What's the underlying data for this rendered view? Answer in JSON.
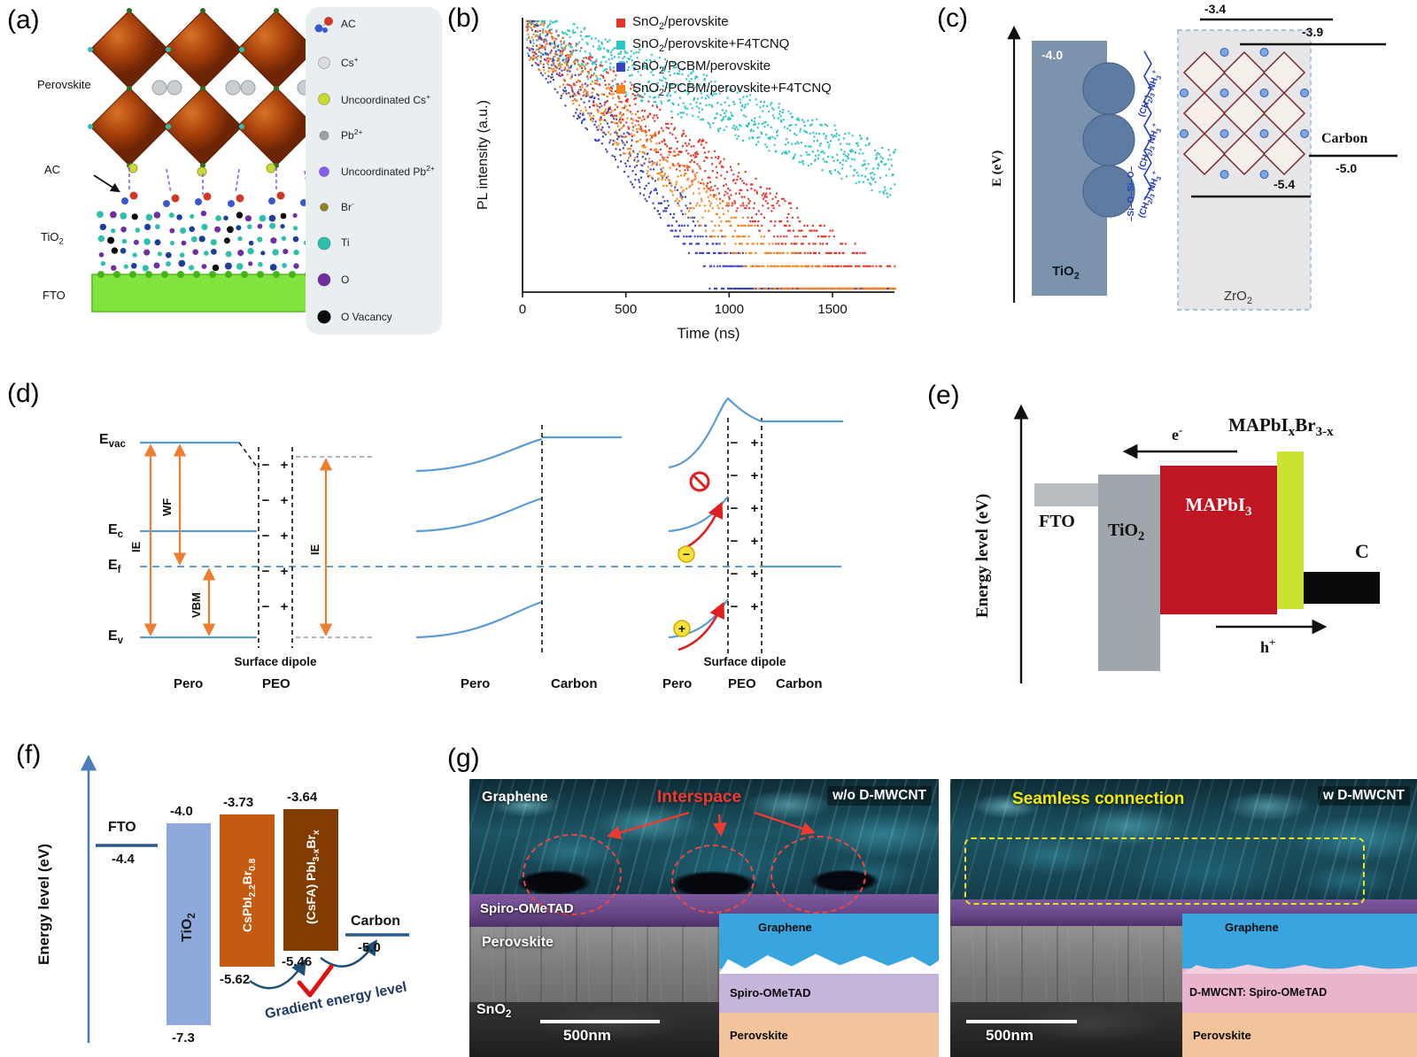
{
  "panel_a": {
    "label": "(a)",
    "perovskite": "Perovskite",
    "ac": "AC",
    "tio2": "TiO<sub>2</sub>",
    "fto": "FTO",
    "legend": [
      {
        "name": "AC",
        "color": "#cf3a28"
      },
      {
        "name": "Cs<sup>+</sup>",
        "color": "#dcdcdc"
      },
      {
        "name": "Uncoordinated Cs<sup>+</sup>",
        "color": "#ccd838"
      },
      {
        "name": "Pb<sup>2+</sup>",
        "color": "#9ba1a6"
      },
      {
        "name": "Uncoordinated Pb<sup>2+</sup>",
        "color": "#8a5cf5"
      },
      {
        "name": "Br<sup>-</sup>",
        "color": "#94811c"
      },
      {
        "name": "Ti",
        "color": "#2fbfae"
      },
      {
        "name": "O",
        "color": "#6f2fa0"
      },
      {
        "name": "O Vacancy",
        "color": "#0b0b0b"
      }
    ]
  },
  "panel_b": {
    "label": "(b)",
    "chart_data": {
      "type": "scatter",
      "xlabel": "Time (ns)",
      "ylabel": "PL intensity  (a.u.)",
      "xlim": [
        0,
        1800
      ],
      "xticks": [
        "0",
        "500",
        "1000",
        "1500"
      ],
      "yscale": "log (arbitrary units, photon-count banding at low intensity)",
      "legend_position": "top-left-inside",
      "series": [
        {
          "name": "SnO<sub>2</sub>/perovskite",
          "color": "#e63329",
          "tau_ns": 210,
          "bg": 0.18
        },
        {
          "name": "SnO<sub>2</sub>/perovskite+F4TCNQ",
          "color": "#2cc5c6",
          "tau_ns": 400,
          "bg": 0.55
        },
        {
          "name": "SnO<sub>2</sub>/PCBM/perovskite",
          "color": "#3743c0",
          "tau_ns": 130,
          "bg": 0.3
        },
        {
          "name": "SnO<sub>2</sub>/PCBM/perovskite+F4TCNQ",
          "color": "#f5851e",
          "tau_ns": 160,
          "bg": 0.38
        }
      ]
    }
  },
  "panel_c": {
    "label": "(c)",
    "axis_label": "E (eV)",
    "tio2_level": "-4.0",
    "tio2_label": "TiO<sub>2</sub>",
    "level_34": "-3.4",
    "level_39": "-3.9",
    "level_54": "-5.4",
    "carbon_label": "Carbon",
    "carbon_level": "-5.0",
    "zro2_label": "ZrO<sub>2</sub>",
    "chain": "(CH<sub>2</sub>)<sub>3</sub>&nbsp;NH<sub>3</sub><sup>+</sup>",
    "si_chain": "–Si–O–Si–O–"
  },
  "panel_d": {
    "label": "(d)",
    "evac": "E<sub>vac</sub>",
    "ec": "E<sub>c</sub>",
    "ef": "E<sub>f</sub>",
    "ev": "E<sub>v</sub>",
    "ie": "IE",
    "wf": "WF",
    "vbm": "VBM",
    "ie2": "IE",
    "plus": "+",
    "minus": "−",
    "surface_dipole": "Surface dipole",
    "pero": "Pero",
    "peo": "PEO",
    "carbon": "Carbon"
  },
  "panel_e": {
    "label": "(e)",
    "axis_label": "Energy level (eV)",
    "fto": "FTO",
    "tio2": "TiO<sub>2</sub>",
    "mapbi3": "MAPbI<sub>3</sub>",
    "mapbix": "MAPbI<sub>x</sub>Br<sub>3-x</sub>",
    "carbon": "C",
    "electron": "e<sup>-</sup>",
    "hole": "h<sup>+</sup>"
  },
  "panel_f": {
    "label": "(f)",
    "axis_label": "Energy level (eV)",
    "fto_label": "FTO",
    "fto_value": "-4.4",
    "tio2_label": "TiO<sub>2</sub>",
    "tio2_top": "-4.0",
    "tio2_bottom": "-7.3",
    "cspb_label": "CsPbI<sub>2.2</sub>Br<sub>0.8</sub>",
    "cspb_top": "-3.73",
    "cspb_bottom": "-5.62",
    "csfa_label": "(CsFA) PbI<sub>3-x</sub>Br<sub>x</sub>",
    "csfa_top": "-3.64",
    "csfa_bottom": "-5.46",
    "carbon_label": "Carbon",
    "carbon_value": "-5.0",
    "gradient_label": "Gradient energy level"
  },
  "panel_g": {
    "label": "(g)",
    "left": {
      "tag": "w/o D-MWCNT",
      "annotation": "Interspace",
      "graphene": "Graphene",
      "spiro": "Spiro-OMeTAD",
      "perovskite": "Perovskite",
      "sno2": "SnO<sub>2</sub>",
      "scale": "500nm",
      "inset_graphene": "Graphene",
      "inset_spiro": "Spiro-OMeTAD",
      "inset_perovskite": "Perovskite"
    },
    "right": {
      "tag": "w D-MWCNT",
      "annotation": "Seamless connection",
      "scale": "500nm",
      "inset_graphene": "Graphene",
      "inset_spiro": "D-MWCNT: Spiro-OMeTAD",
      "inset_perovskite": "Perovskite"
    }
  }
}
